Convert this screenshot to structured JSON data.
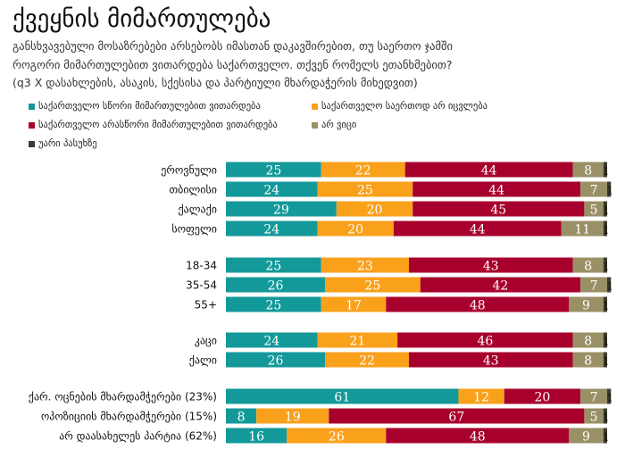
{
  "chart_data": {
    "type": "bar",
    "orientation": "horizontal-stacked",
    "title": "ქვეყნის მიმართულება",
    "subtitle": [
      "განსხვავებული მოსაზრებები არსებობს იმასთან დაკავშირებით, თუ საერთო ჯამში",
      "როგორი მიმართულებით ვითარდება საქართველო. თქვენ რომელს ეთანხმებით?",
      "(q3 X დასახლების, ასაკის, სქესისა და პარტიული მხარდაჭერის მიხედვით)"
    ],
    "series": [
      {
        "name": "საქართველო სწორი მიმართულებით ვითარდება",
        "color": "#14999a",
        "values": [
          25,
          24,
          29,
          24,
          25,
          26,
          25,
          24,
          26,
          61,
          8,
          16
        ]
      },
      {
        "name": "საქართველო საერთოდ არ იცვლება",
        "color": "#f9a11b",
        "values": [
          22,
          25,
          20,
          20,
          23,
          25,
          17,
          21,
          22,
          12,
          19,
          26
        ]
      },
      {
        "name": "საქართველო არასწორი მიმართულებით ვითარდება",
        "color": "#a8002c",
        "values": [
          44,
          44,
          45,
          44,
          43,
          42,
          48,
          46,
          43,
          20,
          67,
          48
        ]
      },
      {
        "name": "არ ვიცი",
        "color": "#9a9066",
        "values": [
          8,
          7,
          5,
          11,
          8,
          7,
          9,
          8,
          8,
          7,
          5,
          9
        ]
      },
      {
        "name": "უარი პასუხზე",
        "color": "#3c3b2c",
        "values": [
          1,
          1,
          1,
          1,
          1,
          1,
          1,
          1,
          1,
          1,
          1,
          1
        ]
      }
    ],
    "categories": [
      "ეროვნული",
      "თბილისი",
      "ქალაქი",
      "სოფელი",
      "18-34",
      "35-54",
      "55+",
      "კაცი",
      "ქალი",
      "ქარ. ოცნების მხარდამჭერები (23%)",
      "ოპოზიციის მხარდამჭერები (15%)",
      "არ დაასახელეს პარტია (62%)"
    ],
    "xlim": [
      0,
      100
    ],
    "legend": "top"
  }
}
